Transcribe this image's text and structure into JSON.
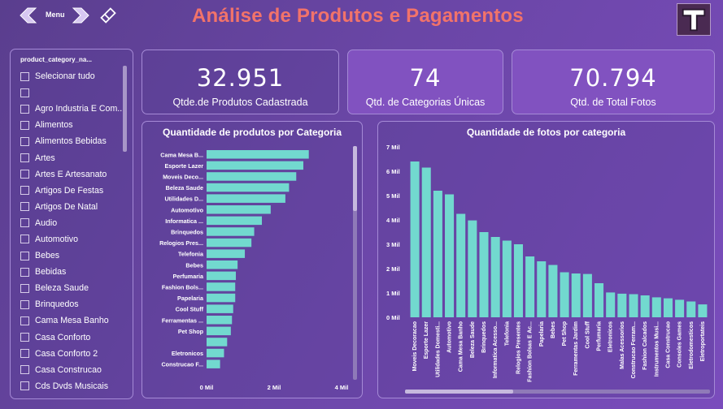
{
  "header": {
    "menu_label": "Menu",
    "title": "Análise de Produtos e Pagamentos",
    "logo_letter": "T",
    "icons": [
      "arrow-left-icon",
      "arrow-right-icon",
      "eraser-icon"
    ]
  },
  "slicer": {
    "header": "product_category_na...",
    "items": [
      "Selecionar tudo",
      "",
      "Agro Industria E Com...",
      "Alimentos",
      "Alimentos Bebidas",
      "Artes",
      "Artes E Artesanato",
      "Artigos De Festas",
      "Artigos De Natal",
      "Audio",
      "Automotivo",
      "Bebes",
      "Bebidas",
      "Beleza Saude",
      "Brinquedos",
      "Cama Mesa Banho",
      "Casa Conforto",
      "Casa Conforto 2",
      "Casa Construcao",
      "Cds Dvds Musicais"
    ]
  },
  "kpis": [
    {
      "value": "32.951",
      "label": "Qtde.de Produtos Cadastrada"
    },
    {
      "value": "74",
      "label": "Qtd. de Categorias Únicas"
    },
    {
      "value": "70.794",
      "label": "Qtd. de Total Fotos"
    }
  ],
  "colors": {
    "bar": "#72d9cf",
    "accent_title": "#f2736a",
    "panel_border": "#a58ad6"
  },
  "chart_data": [
    {
      "type": "bar",
      "orientation": "horizontal",
      "title": "Quantidade de produtos por Categoria",
      "categories": [
        "Cama Mesa B...",
        "Esporte Lazer",
        "Moveis Deco...",
        "Beleza Saude",
        "Utilidades D...",
        "Automotivo",
        "Informatica ...",
        "Brinquedos",
        "Relogios Pres...",
        "Telefonia",
        "Bebes",
        "Perfumaria",
        "Fashion Bols...",
        "Papelaria",
        "Cool Stuff",
        "Ferramentas ...",
        "Pet Shop",
        "",
        "Eletronicos",
        "Construcao F..."
      ],
      "values": [
        3029,
        2867,
        2657,
        2444,
        2335,
        1900,
        1639,
        1411,
        1329,
        1134,
        919,
        868,
        849,
        849,
        789,
        753,
        719,
        610,
        517,
        400
      ],
      "xlim": [
        0,
        4000
      ],
      "x_ticks": [
        "0 Mil",
        "2 Mil",
        "4 Mil"
      ]
    },
    {
      "type": "bar",
      "orientation": "vertical",
      "title": "Quantidade de fotos por categoria",
      "categories": [
        "Moveis Decoracao",
        "Esporte Lazer",
        "Utilidades Domesti...",
        "Automotivo",
        "Cama Mesa Banho",
        "Beleza Saude",
        "Brinquedos",
        "Informatica Acesso...",
        "Telefonia",
        "Relogios Presentes",
        "Fashion Bolsas E Ac...",
        "Papelaria",
        "Bebes",
        "Pet Shop",
        "Ferramentas Jardim",
        "Cool Stuff",
        "Perfumaria",
        "Eletronicos",
        "Malas Acessorios",
        "Construcao Ferram...",
        "Fashion Calcados",
        "Instrumentos Musi...",
        "Casa Construcao",
        "Consoles Games",
        "Eletrodomesticos",
        "Eletroportateis"
      ],
      "values": [
        6400,
        6150,
        5200,
        5050,
        4250,
        3980,
        3500,
        3300,
        3150,
        3000,
        2500,
        2300,
        2150,
        1850,
        1800,
        1780,
        1400,
        1020,
        970,
        950,
        900,
        820,
        780,
        720,
        650,
        530
      ],
      "ylim": [
        0,
        7000
      ],
      "y_ticks": [
        "0 Mil",
        "1 Mil",
        "2 Mil",
        "3 Mil",
        "4 Mil",
        "5 Mil",
        "6 Mil",
        "7 Mil"
      ]
    }
  ]
}
